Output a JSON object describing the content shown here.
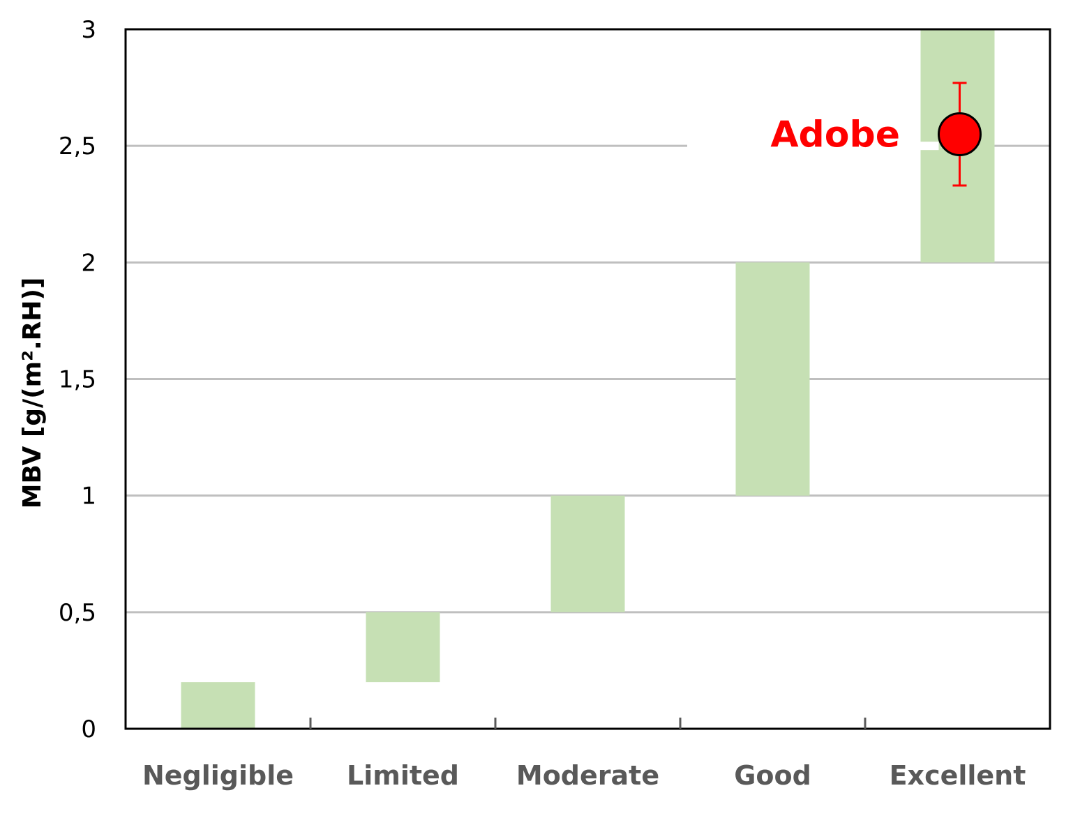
{
  "chart_data": {
    "type": "bar",
    "subtype": "floating-range",
    "title": "",
    "xlabel": "",
    "ylabel": "MBV [g/(m².RH)]",
    "ylim": [
      0,
      3
    ],
    "yticks": [
      0,
      0.5,
      1,
      1.5,
      2,
      2.5,
      3
    ],
    "ytick_labels": [
      "0",
      "0,5",
      "1",
      "1,5",
      "2",
      "2,5",
      "3"
    ],
    "grid": true,
    "legend": "none",
    "categories": [
      "Negligible",
      "Limited",
      "Moderate",
      "Good",
      "Excellent"
    ],
    "ranges": [
      {
        "category": "Negligible",
        "low": 0,
        "high": 0.2
      },
      {
        "category": "Limited",
        "low": 0.2,
        "high": 0.5
      },
      {
        "category": "Moderate",
        "low": 0.5,
        "high": 1
      },
      {
        "category": "Good",
        "low": 1,
        "high": 2
      },
      {
        "category": "Excellent",
        "low": 2,
        "high": 3
      }
    ],
    "point": {
      "label": "Adobe",
      "category": "Excellent",
      "value": 2.55,
      "error_low": 2.33,
      "error_high": 2.77
    },
    "colors": {
      "range_fill": "#c6e0b4",
      "point": "#ff0000",
      "grid": "#bfbfbf",
      "category_text": "#595959"
    }
  }
}
